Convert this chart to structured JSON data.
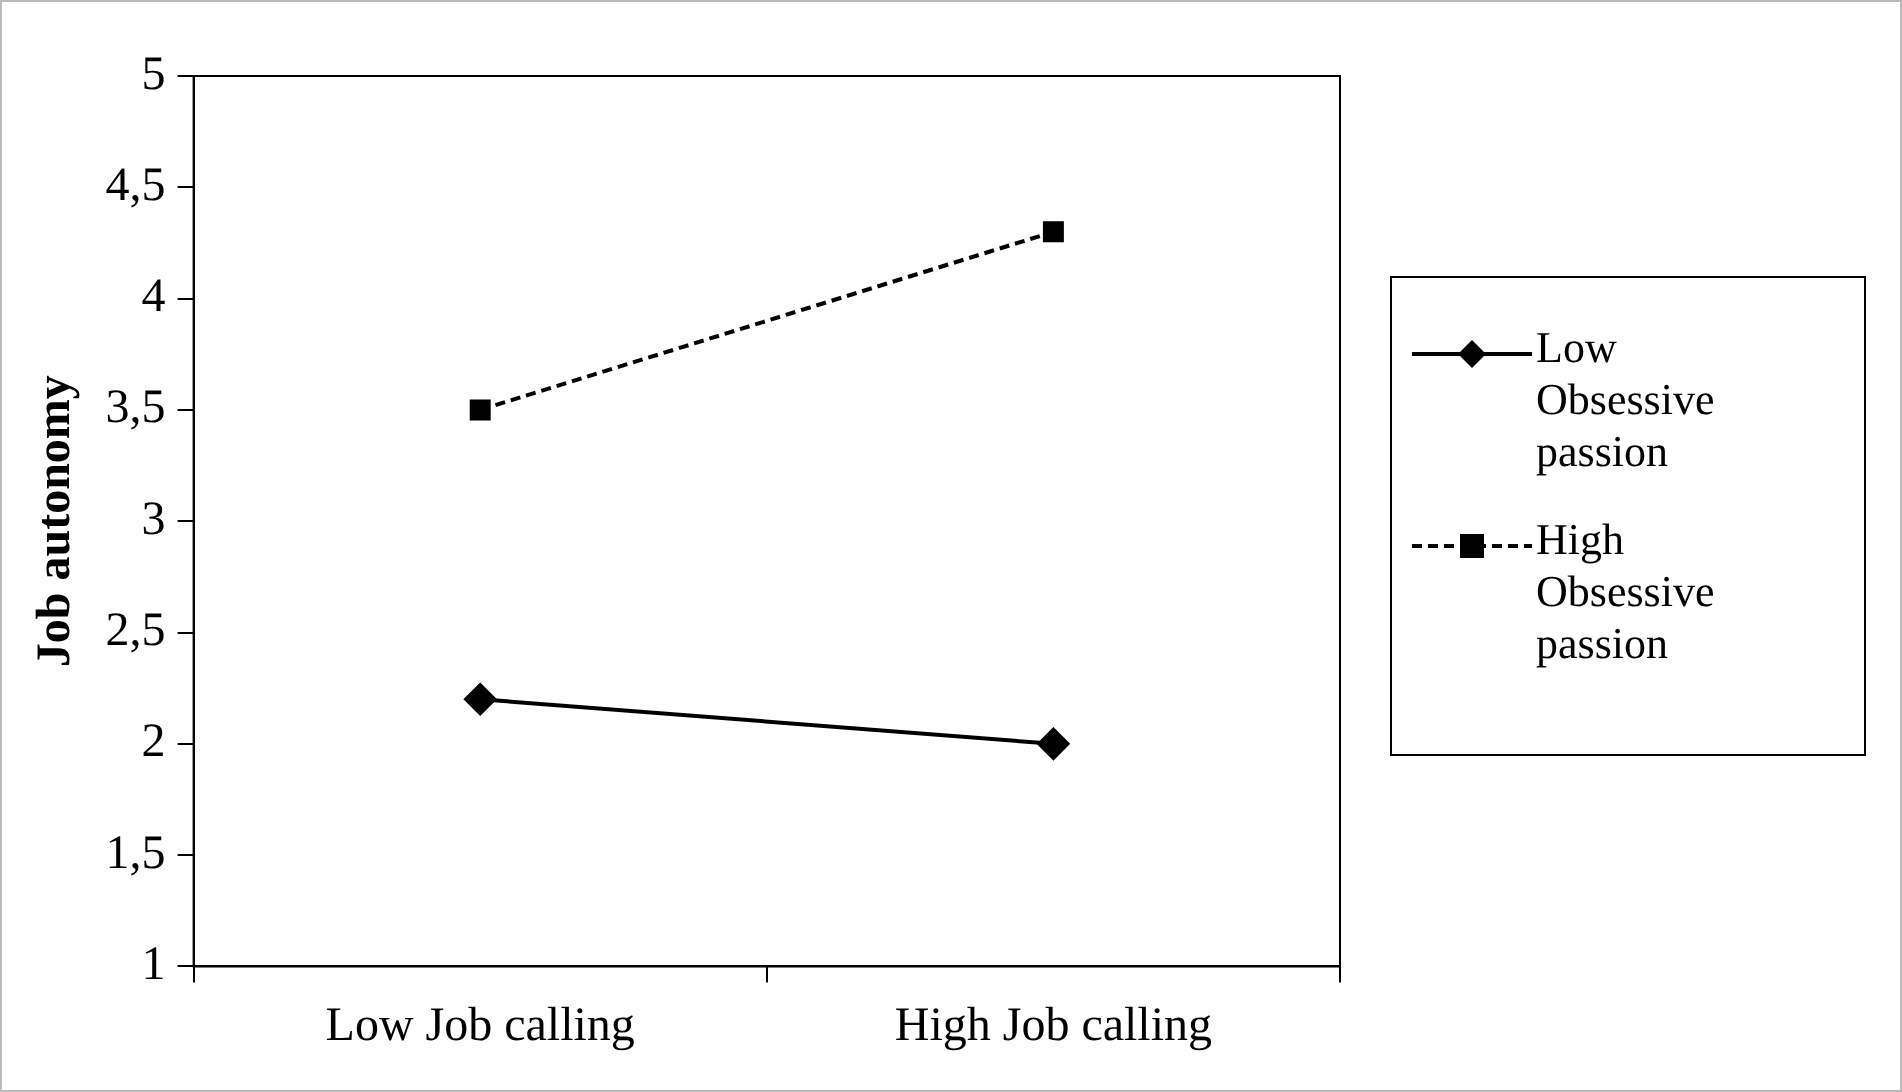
{
  "chart_data": {
    "type": "line",
    "ylabel": "Job autonomy",
    "categories": [
      "Low Job calling",
      "High Job calling"
    ],
    "series": [
      {
        "name": "Low Obsessive passion",
        "color": "#000000",
        "values": [
          2.2,
          2.0
        ],
        "marker": "diamond",
        "line_style": "solid"
      },
      {
        "name": "High Obsessive passion",
        "color": "#000000",
        "values": [
          3.5,
          4.3
        ],
        "marker": "square",
        "line_style": "dashed"
      }
    ],
    "ylim": [
      1,
      5
    ],
    "yticks": [
      1,
      {
        "value": 1.5,
        "label": "1,5"
      },
      2,
      {
        "value": 2.5,
        "label": "2,5"
      },
      3,
      {
        "value": 3.5,
        "label": "3,5"
      },
      4,
      {
        "value": 4.5,
        "label": "4,5"
      },
      5
    ],
    "grid": false,
    "legend": "right"
  }
}
